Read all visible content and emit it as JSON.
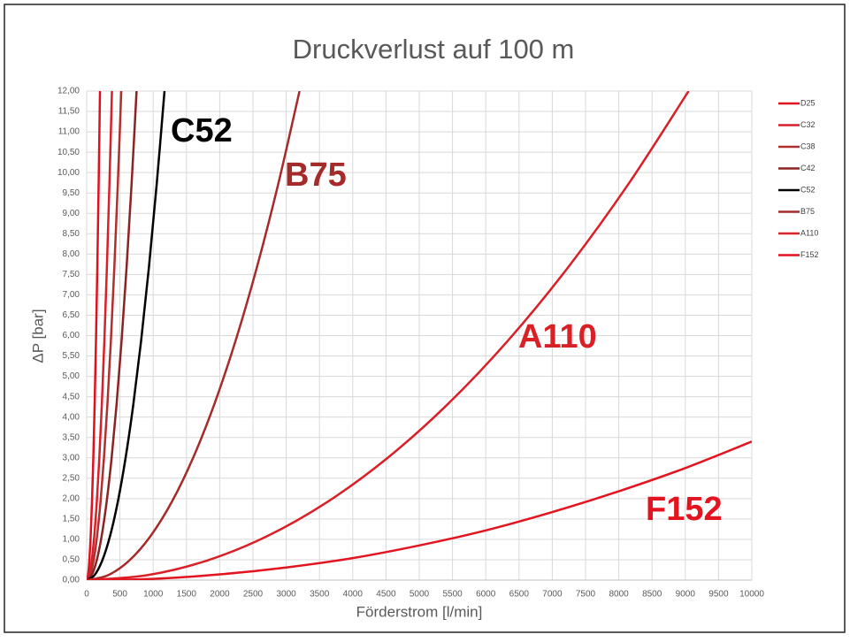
{
  "chart_data": {
    "type": "line",
    "title": "Druckverlust auf 100 m",
    "xlabel": "Förderstrom [l/min]",
    "ylabel": "ΔP [bar]",
    "xlim": [
      0,
      10000
    ],
    "ylim": [
      0,
      12
    ],
    "xticks": [
      0,
      500,
      1000,
      1500,
      2000,
      2500,
      3000,
      3500,
      4000,
      4500,
      5000,
      5500,
      6000,
      6500,
      7000,
      7500,
      8000,
      8500,
      9000,
      9500,
      10000
    ],
    "yticks": [
      {
        "value": 0,
        "label": "0,00"
      },
      {
        "value": 0.5,
        "label": "0,50"
      },
      {
        "value": 1,
        "label": "1,00"
      },
      {
        "value": 1.5,
        "label": "1,50"
      },
      {
        "value": 2,
        "label": "2,00"
      },
      {
        "value": 2.5,
        "label": "2,50"
      },
      {
        "value": 3,
        "label": "3,00"
      },
      {
        "value": 3.5,
        "label": "3,50"
      },
      {
        "value": 4,
        "label": "4,00"
      },
      {
        "value": 4.5,
        "label": "4,50"
      },
      {
        "value": 5,
        "label": "5,00"
      },
      {
        "value": 5.5,
        "label": "5,50"
      },
      {
        "value": 6,
        "label": "6,00"
      },
      {
        "value": 6.5,
        "label": "6,50"
      },
      {
        "value": 7,
        "label": "7,00"
      },
      {
        "value": 7.5,
        "label": "7,50"
      },
      {
        "value": 8,
        "label": "8,00"
      },
      {
        "value": 8.5,
        "label": "8,50"
      },
      {
        "value": 9,
        "label": "9,00"
      },
      {
        "value": 9.5,
        "label": "9,50"
      },
      {
        "value": 10,
        "label": "10,00"
      },
      {
        "value": 10.5,
        "label": "10,50"
      },
      {
        "value": 11,
        "label": "11,00"
      },
      {
        "value": 11.5,
        "label": "11,50"
      },
      {
        "value": 12,
        "label": "12,00"
      }
    ],
    "grid": true,
    "legend": "right",
    "series": [
      {
        "name": "D25",
        "color": "#e0101e",
        "x": [
          0,
          20,
          40,
          60,
          80,
          100,
          120,
          140,
          160,
          180,
          200
        ],
        "values": [
          0,
          0.12,
          0.48,
          1.08,
          1.92,
          3,
          4.32,
          5.88,
          7.68,
          9.72,
          12
        ]
      },
      {
        "name": "C32",
        "color": "#d8202a",
        "x": [
          0,
          38,
          76,
          114,
          152,
          190,
          228,
          266,
          304,
          342,
          380
        ],
        "values": [
          0,
          0.12,
          0.48,
          1.08,
          1.92,
          3,
          4.32,
          5.88,
          7.68,
          9.72,
          12
        ]
      },
      {
        "name": "C38",
        "color": "#b03030",
        "x": [
          0,
          52,
          104,
          156,
          208,
          260,
          312,
          364,
          416,
          468,
          520
        ],
        "values": [
          0,
          0.12,
          0.48,
          1.08,
          1.92,
          3,
          4.32,
          5.88,
          7.68,
          9.72,
          12
        ]
      },
      {
        "name": "C42",
        "color": "#8b2323",
        "x": [
          0,
          75,
          150,
          225,
          300,
          375,
          450,
          525,
          600,
          675,
          750
        ],
        "values": [
          0,
          0.12,
          0.48,
          1.08,
          1.92,
          3,
          4.32,
          5.88,
          7.68,
          9.72,
          12
        ]
      },
      {
        "name": "C52",
        "color": "#000000",
        "x": [
          0,
          117,
          234,
          351,
          468,
          585,
          702,
          819,
          936,
          1053,
          1170
        ],
        "values": [
          0,
          0.12,
          0.48,
          1.08,
          1.92,
          3,
          4.32,
          5.88,
          7.68,
          9.72,
          12
        ]
      },
      {
        "name": "B75",
        "color": "#a52a2a",
        "x": [
          0,
          320,
          640,
          960,
          1280,
          1600,
          1920,
          2240,
          2560,
          2880,
          3200
        ],
        "values": [
          0,
          0.12,
          0.48,
          1.08,
          1.92,
          3,
          4.32,
          5.88,
          7.68,
          9.72,
          12
        ]
      },
      {
        "name": "A110",
        "color": "#d92027",
        "x": [
          0,
          905,
          1810,
          2715,
          3620,
          4525,
          5430,
          6335,
          7240,
          8145,
          9050
        ],
        "values": [
          0,
          0.12,
          0.48,
          1.08,
          1.92,
          3,
          4.32,
          5.88,
          7.68,
          9.72,
          12
        ]
      },
      {
        "name": "F152",
        "color": "#e3141f",
        "x": [
          0,
          1000,
          2000,
          3000,
          4000,
          5000,
          6000,
          7000,
          8000,
          9000,
          10000
        ],
        "values": [
          0,
          0.03,
          0.14,
          0.31,
          0.54,
          0.85,
          1.22,
          1.67,
          2.18,
          2.75,
          3.4
        ]
      }
    ],
    "annotations": [
      "C52",
      "B75",
      "A110",
      "F152"
    ]
  }
}
